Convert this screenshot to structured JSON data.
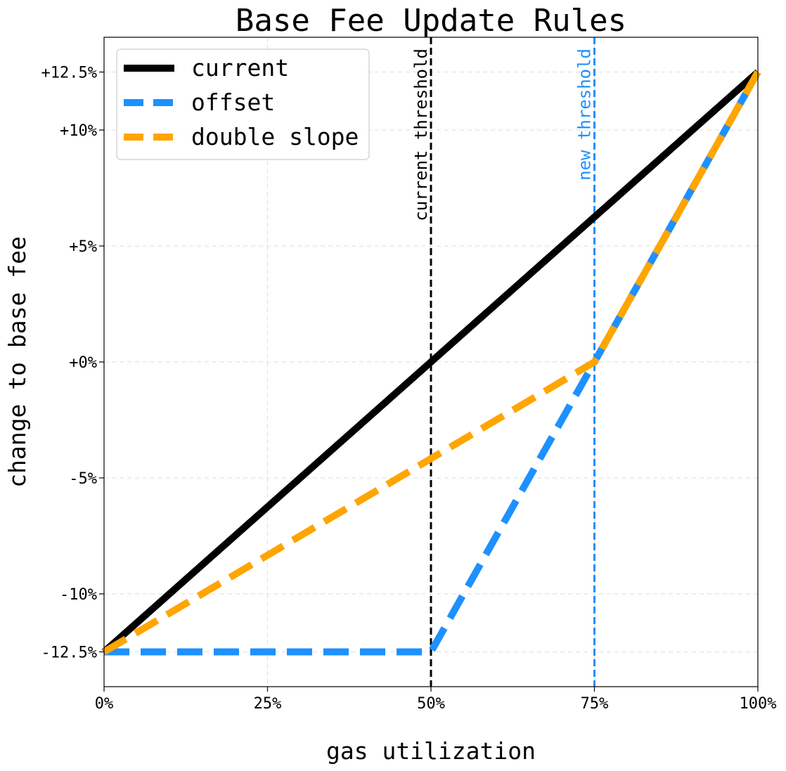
{
  "chart_data": {
    "type": "line",
    "title": "Base Fee Update Rules",
    "xlabel": "gas utilization",
    "ylabel": "change to base fee",
    "xlim": [
      0,
      100
    ],
    "ylim": [
      -14,
      14
    ],
    "x_ticks": [
      {
        "value": 0,
        "label": "0%"
      },
      {
        "value": 25,
        "label": "25%"
      },
      {
        "value": 50,
        "label": "50%"
      },
      {
        "value": 75,
        "label": "75%"
      },
      {
        "value": 100,
        "label": "100%"
      }
    ],
    "y_ticks": [
      {
        "value": -12.5,
        "label": "-12.5%"
      },
      {
        "value": -10,
        "label": "-10%"
      },
      {
        "value": -5,
        "label": "-5%"
      },
      {
        "value": 0,
        "label": "+0%"
      },
      {
        "value": 5,
        "label": "+5%"
      },
      {
        "value": 10,
        "label": "+10%"
      },
      {
        "value": 12.5,
        "label": "+12.5%"
      }
    ],
    "grid": true,
    "legend_position": "top-left",
    "series": [
      {
        "name": "current",
        "color": "#000000",
        "style": "solid",
        "x": [
          0,
          100
        ],
        "y": [
          -12.5,
          12.5
        ]
      },
      {
        "name": "offset",
        "color": "#1e90ff",
        "style": "dashed",
        "x": [
          0,
          50,
          75,
          100
        ],
        "y": [
          -12.5,
          -12.5,
          0,
          12.5
        ]
      },
      {
        "name": "double slope",
        "color": "#ffa500",
        "style": "dashed",
        "x": [
          0,
          75,
          100
        ],
        "y": [
          -12.5,
          0,
          12.5
        ]
      }
    ],
    "annotations": [
      {
        "label": "current threshold",
        "x": 50,
        "color": "#000000"
      },
      {
        "label": "new threshold",
        "x": 75,
        "color": "#1e90ff"
      }
    ]
  }
}
